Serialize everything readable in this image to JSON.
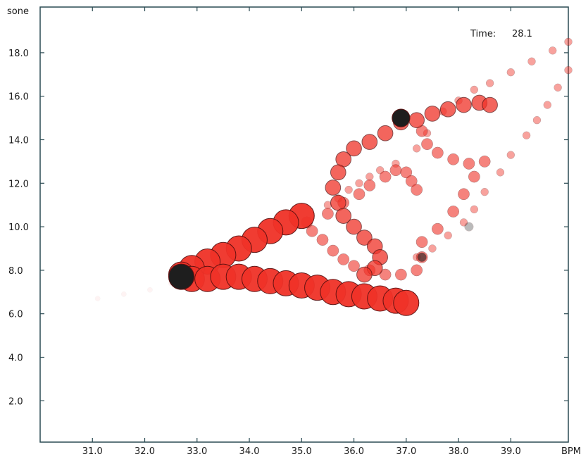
{
  "chart_data": {
    "type": "scatter",
    "xunit": "BPM",
    "yunit": "sone",
    "xlim": [
      30.0,
      40.1
    ],
    "ylim": [
      0.1,
      20.1
    ],
    "xticks": [
      31.0,
      32.0,
      33.0,
      34.0,
      35.0,
      36.0,
      37.0,
      38.0,
      39.0
    ],
    "xtick_labels": [
      "31.0",
      "32.0",
      "33.0",
      "34.0",
      "35.0",
      "36.0",
      "37.0",
      "38.0",
      "39.0"
    ],
    "yticks": [
      2.0,
      4.0,
      6.0,
      8.0,
      10.0,
      12.0,
      14.0,
      16.0,
      18.0
    ],
    "ytick_labels": [
      "2.0",
      "4.0",
      "6.0",
      "8.0",
      "10.0",
      "12.0",
      "14.0",
      "16.0",
      "18.0"
    ],
    "time_label": "Time:",
    "time_value": "28.1",
    "colors": {
      "bubble": "#f03228",
      "bubble_edge": "#5a1010",
      "highlight": "#1e1e1e",
      "axis": "#2a4a52"
    },
    "series": [
      {
        "role": "faint-trail",
        "opacity": 0.05,
        "size": 0.2,
        "points": [
          [
            31.1,
            6.7
          ],
          [
            31.6,
            6.9
          ],
          [
            32.1,
            7.1
          ],
          [
            32.5,
            7.4
          ]
        ]
      },
      {
        "role": "past-trail",
        "opacity": 0.45,
        "size": 0.3,
        "points": [
          [
            35.5,
            11.0
          ],
          [
            35.7,
            11.3
          ],
          [
            35.9,
            11.7
          ],
          [
            36.1,
            12.0
          ],
          [
            36.3,
            12.3
          ],
          [
            36.5,
            12.6
          ],
          [
            36.8,
            12.9
          ],
          [
            37.2,
            13.6
          ],
          [
            37.4,
            14.3
          ],
          [
            37.7,
            15.3
          ],
          [
            38.0,
            15.8
          ],
          [
            38.3,
            16.3
          ],
          [
            38.6,
            16.6
          ],
          [
            39.0,
            17.1
          ],
          [
            39.4,
            17.6
          ],
          [
            39.8,
            18.1
          ],
          [
            40.1,
            18.5
          ],
          [
            40.1,
            17.2
          ],
          [
            39.9,
            16.4
          ],
          [
            39.7,
            15.6
          ],
          [
            39.5,
            14.9
          ],
          [
            39.3,
            14.2
          ],
          [
            39.0,
            13.3
          ],
          [
            38.8,
            12.5
          ],
          [
            38.5,
            11.6
          ],
          [
            38.3,
            10.8
          ],
          [
            38.1,
            10.2
          ],
          [
            37.8,
            9.6
          ],
          [
            37.5,
            9.0
          ],
          [
            37.2,
            8.6
          ]
        ]
      },
      {
        "role": "mid-trail",
        "opacity": 0.6,
        "size": 0.45,
        "points": [
          [
            37.3,
            14.4
          ],
          [
            37.4,
            13.8
          ],
          [
            37.6,
            13.4
          ],
          [
            37.9,
            13.1
          ],
          [
            38.2,
            12.9
          ],
          [
            38.5,
            13.0
          ],
          [
            38.3,
            12.3
          ],
          [
            38.1,
            11.5
          ],
          [
            37.9,
            10.7
          ],
          [
            37.6,
            9.9
          ],
          [
            37.3,
            9.3
          ],
          [
            37.3,
            8.6
          ],
          [
            37.2,
            8.0
          ],
          [
            36.9,
            7.8
          ],
          [
            36.6,
            7.8
          ],
          [
            36.3,
            8.0
          ],
          [
            36.0,
            8.2
          ],
          [
            35.8,
            8.5
          ],
          [
            35.6,
            8.9
          ],
          [
            35.4,
            9.4
          ],
          [
            35.2,
            9.8
          ],
          [
            35.1,
            10.2
          ],
          [
            35.5,
            10.6
          ],
          [
            35.8,
            11.1
          ],
          [
            36.1,
            11.5
          ],
          [
            36.3,
            11.9
          ],
          [
            36.6,
            12.3
          ],
          [
            36.8,
            12.6
          ],
          [
            37.0,
            12.5
          ],
          [
            37.1,
            12.1
          ],
          [
            37.2,
            11.7
          ]
        ]
      },
      {
        "role": "recent-path",
        "opacity": 0.75,
        "size": 0.6,
        "points": [
          [
            36.9,
            14.8
          ],
          [
            36.6,
            14.3
          ],
          [
            36.3,
            13.9
          ],
          [
            36.0,
            13.6
          ],
          [
            35.8,
            13.1
          ],
          [
            35.7,
            12.5
          ],
          [
            35.6,
            11.8
          ],
          [
            35.7,
            11.1
          ],
          [
            35.8,
            10.5
          ],
          [
            36.0,
            10.0
          ],
          [
            36.2,
            9.5
          ],
          [
            36.4,
            9.1
          ],
          [
            36.5,
            8.6
          ],
          [
            36.4,
            8.1
          ],
          [
            36.2,
            7.8
          ],
          [
            37.2,
            14.9
          ],
          [
            37.5,
            15.2
          ],
          [
            37.8,
            15.4
          ],
          [
            38.1,
            15.6
          ],
          [
            38.4,
            15.7
          ],
          [
            38.6,
            15.6
          ]
        ]
      },
      {
        "role": "current-path",
        "opacity": 0.95,
        "size": 1.0,
        "points": [
          [
            35.0,
            10.5
          ],
          [
            34.7,
            10.2
          ],
          [
            34.4,
            9.8
          ],
          [
            34.1,
            9.4
          ],
          [
            33.8,
            9.0
          ],
          [
            33.5,
            8.7
          ],
          [
            33.2,
            8.4
          ],
          [
            32.9,
            8.1
          ],
          [
            32.7,
            7.8
          ],
          [
            32.9,
            7.6
          ],
          [
            33.2,
            7.6
          ],
          [
            33.5,
            7.7
          ],
          [
            33.8,
            7.7
          ],
          [
            34.1,
            7.6
          ],
          [
            34.4,
            7.5
          ],
          [
            34.7,
            7.4
          ],
          [
            35.0,
            7.3
          ],
          [
            35.3,
            7.2
          ],
          [
            35.6,
            7.0
          ],
          [
            35.9,
            6.9
          ],
          [
            36.2,
            6.8
          ],
          [
            36.5,
            6.7
          ],
          [
            36.8,
            6.6
          ],
          [
            37.0,
            6.5
          ]
        ]
      },
      {
        "role": "current-marker",
        "opacity": 1.0,
        "size": 1.0,
        "dark": true,
        "points": [
          [
            32.7,
            7.7
          ]
        ]
      },
      {
        "role": "past-marker",
        "opacity": 1.0,
        "size": 0.7,
        "dark": true,
        "points": [
          [
            36.9,
            15.0
          ]
        ]
      },
      {
        "role": "past-marker",
        "opacity": 0.6,
        "size": 0.35,
        "dark": true,
        "points": [
          [
            37.3,
            8.6
          ]
        ]
      },
      {
        "role": "past-marker",
        "opacity": 0.3,
        "size": 0.35,
        "dark": true,
        "points": [
          [
            38.2,
            10.0
          ]
        ]
      }
    ]
  }
}
